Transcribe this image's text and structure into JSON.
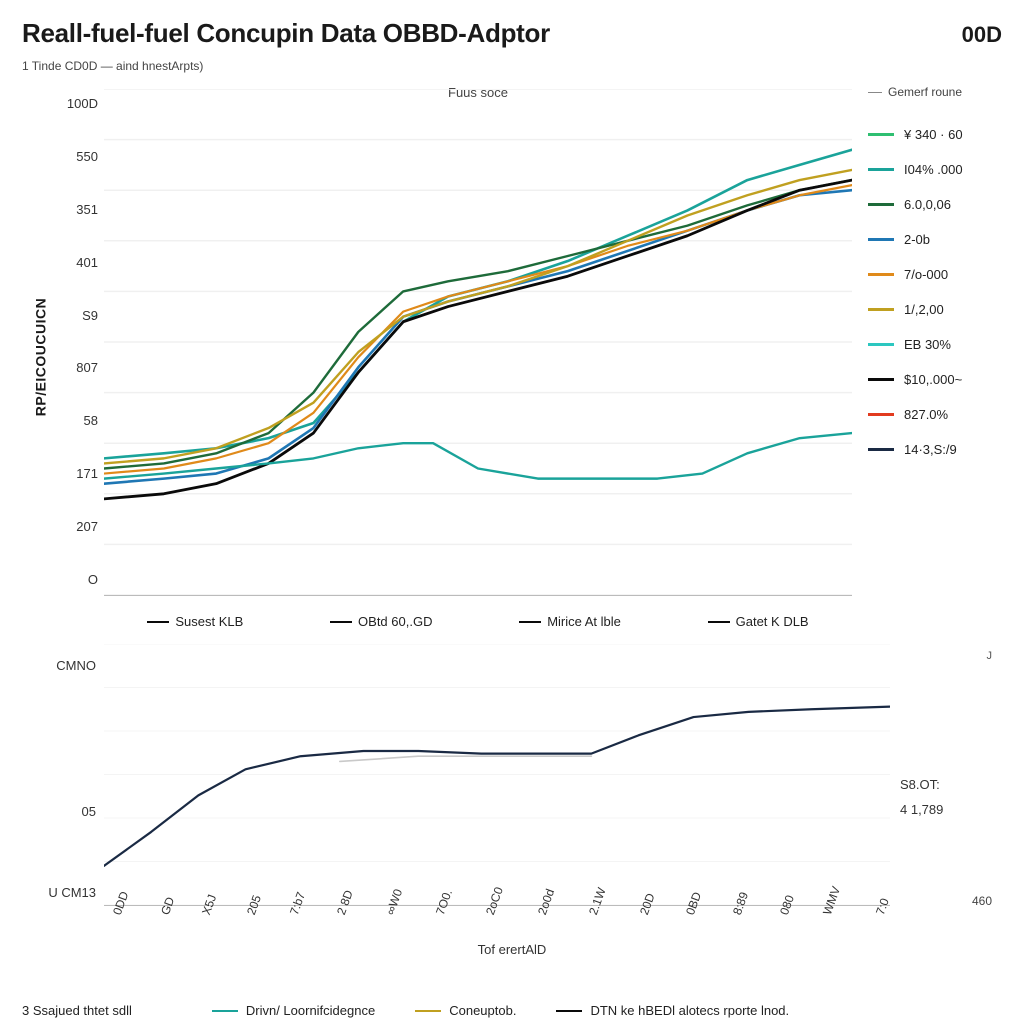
{
  "header": {
    "title": "Reall-fuel-fuel Concupin Data  OBBD-Adptor",
    "top_right": "00D",
    "subtitle": "1 Tinde CD0D — aind hnestArpts)"
  },
  "chart1": {
    "type": "line",
    "axis_title_top": "Fuus soce",
    "y_label_vertical": "RP/EICOUCUICN",
    "y_ticks": [
      "100D",
      "550",
      "351",
      "401",
      "S9",
      "807",
      "58",
      "171",
      "207",
      "O"
    ],
    "x_legend": [
      {
        "label": "Susest KLB",
        "color": "#0a0a0a"
      },
      {
        "label": "OBtd 60,.GD",
        "color": "#0a0a0a"
      },
      {
        "label": "Mirice At lble",
        "color": "#0a0a0a"
      },
      {
        "label": "Gatet K DLB",
        "color": "#0a0a0a"
      }
    ],
    "grid_color": "#f0f0f0",
    "background_color": "#ffffff",
    "x_domain": [
      0,
      100
    ],
    "y_domain": [
      0,
      100
    ],
    "series": [
      {
        "id": "s1",
        "color": "#1aa39a",
        "width": 2.6,
        "points": [
          [
            0,
            27
          ],
          [
            8,
            28
          ],
          [
            15,
            29
          ],
          [
            22,
            31
          ],
          [
            28,
            34
          ],
          [
            34,
            44
          ],
          [
            40,
            54
          ],
          [
            46,
            59
          ],
          [
            54,
            62
          ],
          [
            62,
            66
          ],
          [
            70,
            71
          ],
          [
            78,
            76
          ],
          [
            86,
            82
          ],
          [
            93,
            85
          ],
          [
            100,
            88
          ]
        ]
      },
      {
        "id": "s2",
        "color": "#1f77b4",
        "width": 2.6,
        "points": [
          [
            0,
            22
          ],
          [
            8,
            23
          ],
          [
            15,
            24
          ],
          [
            22,
            27
          ],
          [
            28,
            33
          ],
          [
            34,
            45
          ],
          [
            40,
            55
          ],
          [
            46,
            58
          ],
          [
            54,
            61
          ],
          [
            62,
            64
          ],
          [
            70,
            68
          ],
          [
            78,
            72
          ],
          [
            86,
            76
          ],
          [
            93,
            79
          ],
          [
            100,
            80
          ]
        ]
      },
      {
        "id": "s3",
        "color": "#1e6b3a",
        "width": 2.4,
        "points": [
          [
            0,
            25
          ],
          [
            8,
            26
          ],
          [
            15,
            28
          ],
          [
            22,
            32
          ],
          [
            28,
            40
          ],
          [
            34,
            52
          ],
          [
            40,
            60
          ],
          [
            46,
            62
          ],
          [
            54,
            64
          ],
          [
            62,
            67
          ],
          [
            70,
            70
          ],
          [
            78,
            73
          ],
          [
            86,
            77
          ],
          [
            93,
            80
          ],
          [
            100,
            82
          ]
        ]
      },
      {
        "id": "s4",
        "color": "#e08a1a",
        "width": 2.2,
        "points": [
          [
            0,
            24
          ],
          [
            8,
            25
          ],
          [
            15,
            27
          ],
          [
            22,
            30
          ],
          [
            28,
            36
          ],
          [
            34,
            47
          ],
          [
            40,
            56
          ],
          [
            46,
            59
          ],
          [
            54,
            62
          ],
          [
            62,
            65
          ],
          [
            70,
            69
          ],
          [
            78,
            72
          ],
          [
            86,
            76
          ],
          [
            93,
            79
          ],
          [
            100,
            81
          ]
        ]
      },
      {
        "id": "s5",
        "color": "#c0a020",
        "width": 2.4,
        "points": [
          [
            0,
            26
          ],
          [
            8,
            27
          ],
          [
            15,
            29
          ],
          [
            22,
            33
          ],
          [
            28,
            38
          ],
          [
            34,
            48
          ],
          [
            40,
            55
          ],
          [
            46,
            58
          ],
          [
            54,
            61
          ],
          [
            62,
            65
          ],
          [
            70,
            70
          ],
          [
            78,
            75
          ],
          [
            86,
            79
          ],
          [
            93,
            82
          ],
          [
            100,
            84
          ]
        ]
      },
      {
        "id": "s6",
        "color": "#0a0a0a",
        "width": 2.8,
        "points": [
          [
            0,
            19
          ],
          [
            8,
            20
          ],
          [
            15,
            22
          ],
          [
            22,
            26
          ],
          [
            28,
            32
          ],
          [
            34,
            44
          ],
          [
            40,
            54
          ],
          [
            46,
            57
          ],
          [
            54,
            60
          ],
          [
            62,
            63
          ],
          [
            70,
            67
          ],
          [
            78,
            71
          ],
          [
            86,
            76
          ],
          [
            93,
            80
          ],
          [
            100,
            82
          ]
        ]
      },
      {
        "id": "s7_low",
        "color": "#1aa39a",
        "width": 2.4,
        "points": [
          [
            0,
            23
          ],
          [
            8,
            24
          ],
          [
            15,
            25
          ],
          [
            22,
            26
          ],
          [
            28,
            27
          ],
          [
            34,
            29
          ],
          [
            40,
            30
          ],
          [
            44,
            30
          ],
          [
            50,
            25
          ],
          [
            58,
            23
          ],
          [
            66,
            23
          ],
          [
            74,
            23
          ],
          [
            80,
            24
          ],
          [
            86,
            28
          ],
          [
            93,
            31
          ],
          [
            100,
            32
          ]
        ]
      }
    ],
    "legend_right": {
      "top_label": "Gemerf roune",
      "items": [
        {
          "swatch": "#2fbf71",
          "label": "¥ 340 · 60"
        },
        {
          "swatch": "#1aa39a",
          "label": "I04% .000"
        },
        {
          "swatch": "#1e6b3a",
          "label": "6.0,0,06"
        },
        {
          "swatch": "#1f77b4",
          "label": "2-0b"
        },
        {
          "swatch": "#e08a1a",
          "label": "7/o-000"
        },
        {
          "swatch": "#c0a020",
          "label": "1/,2,00"
        },
        {
          "swatch": "#2cc7c0",
          "label": "EB 30%"
        },
        {
          "swatch": "#0a0a0a",
          "label": "$10,.000~"
        },
        {
          "swatch": "#e23b1f",
          "label": "827.0%"
        },
        {
          "swatch": "#1a2a44",
          "label": "14·3,S:/9"
        }
      ]
    }
  },
  "chart2": {
    "type": "line",
    "y_ticks": [
      "CMNO",
      "",
      "05",
      "U CM13"
    ],
    "grid_color": "#f0f0f0",
    "x_domain": [
      0,
      100
    ],
    "y_domain": [
      0,
      100
    ],
    "series": [
      {
        "id": "main",
        "color": "#1a2a44",
        "width": 2.2,
        "points": [
          [
            0,
            15
          ],
          [
            6,
            28
          ],
          [
            12,
            42
          ],
          [
            18,
            52
          ],
          [
            25,
            57
          ],
          [
            33,
            59
          ],
          [
            40,
            59
          ],
          [
            48,
            58
          ],
          [
            56,
            58
          ],
          [
            62,
            58
          ],
          [
            68,
            65
          ],
          [
            75,
            72
          ],
          [
            82,
            74
          ],
          [
            90,
            75
          ],
          [
            100,
            76
          ]
        ]
      },
      {
        "id": "grey",
        "color": "#c9c9c9",
        "width": 1.6,
        "points": [
          [
            30,
            55
          ],
          [
            40,
            57
          ],
          [
            50,
            57
          ],
          [
            58,
            57
          ],
          [
            62,
            57
          ]
        ]
      }
    ],
    "right_labels": {
      "top_right": "J",
      "mid1": "S8.OT:",
      "mid2": "4 1,789",
      "bottom_right": "460"
    },
    "x_ticks": [
      "0DD",
      "GD",
      "X5J",
      "205",
      "7:b7",
      "2 8D",
      "∞W0",
      "7O0.",
      "2oC0",
      "2o0d",
      "2.1W",
      "20D",
      "0BD",
      "8:89",
      "080",
      "WMV",
      "7:0"
    ],
    "x_axis_label": "Tof erertAlD"
  },
  "bottom_legend": {
    "left_note": "3 Ssajued thtet sdll",
    "items": [
      {
        "swatch": "#1aa39a",
        "label": "Drivn/ Loornifcidegnce"
      },
      {
        "swatch": "#c0a020",
        "label": "Coneuptob."
      },
      {
        "swatch": "#0a0a0a",
        "label": "DTN ke hBEDl alotecs rporte lnod."
      }
    ]
  }
}
